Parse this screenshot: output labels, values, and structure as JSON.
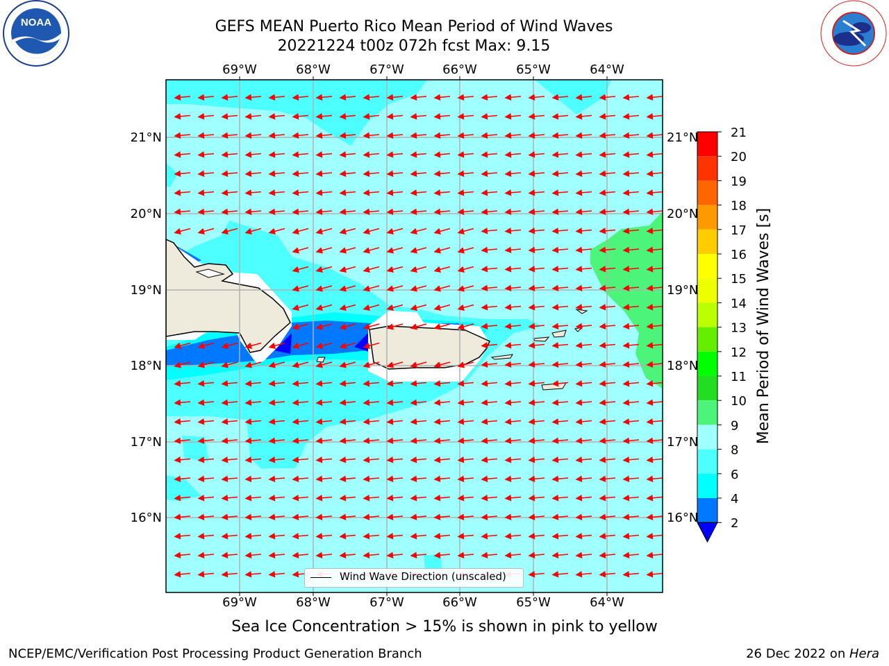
{
  "header": {
    "title_line1": "GEFS MEAN Puerto Rico Mean Period of Wind Waves",
    "title_line2": "20221224 t00z 072h fcst   Max: 9.15"
  },
  "logos": {
    "left": "NOAA",
    "left_ring_text": "NATIONAL OCEANIC AND ATMOSPHERIC ADMINISTRATION · U.S. DEPARTMENT OF COMMERCE",
    "right_ring_text": "NATIONAL WEATHER SERVICE"
  },
  "map": {
    "lon_labels": [
      "69°W",
      "68°W",
      "67°W",
      "66°W",
      "65°W",
      "64°W"
    ],
    "lat_labels": [
      "21°N",
      "20°N",
      "19°N",
      "18°N",
      "17°N",
      "16°N"
    ],
    "vector_color": "#ff0000",
    "land_color": "#eeebdc",
    "legend_label": "Wind Wave Direction (unscaled)"
  },
  "colorbar": {
    "label": "Mean Period of Wind Waves [s]",
    "ticks": [
      "2",
      "4",
      "6",
      "8",
      "9",
      "10",
      "11",
      "12",
      "13",
      "14",
      "15",
      "16",
      "17",
      "18",
      "19",
      "20",
      "21"
    ],
    "colors": [
      "#0000ff",
      "#0078ff",
      "#00ffff",
      "#4dffff",
      "#a0ffff",
      "#4cf57a",
      "#22dd22",
      "#00ff00",
      "#66ee00",
      "#bbff00",
      "#eeff00",
      "#ffff00",
      "#ffcc00",
      "#ff9900",
      "#ff6600",
      "#ff3300",
      "#ff0000"
    ]
  },
  "caption": "Sea Ice Concentration > 15% is shown in pink to yellow",
  "footer": {
    "left": "NCEP/EMC/Verification Post Processing Product Generation Branch",
    "right_date": "26 Dec 2022 on ",
    "right_host": "Hera"
  }
}
